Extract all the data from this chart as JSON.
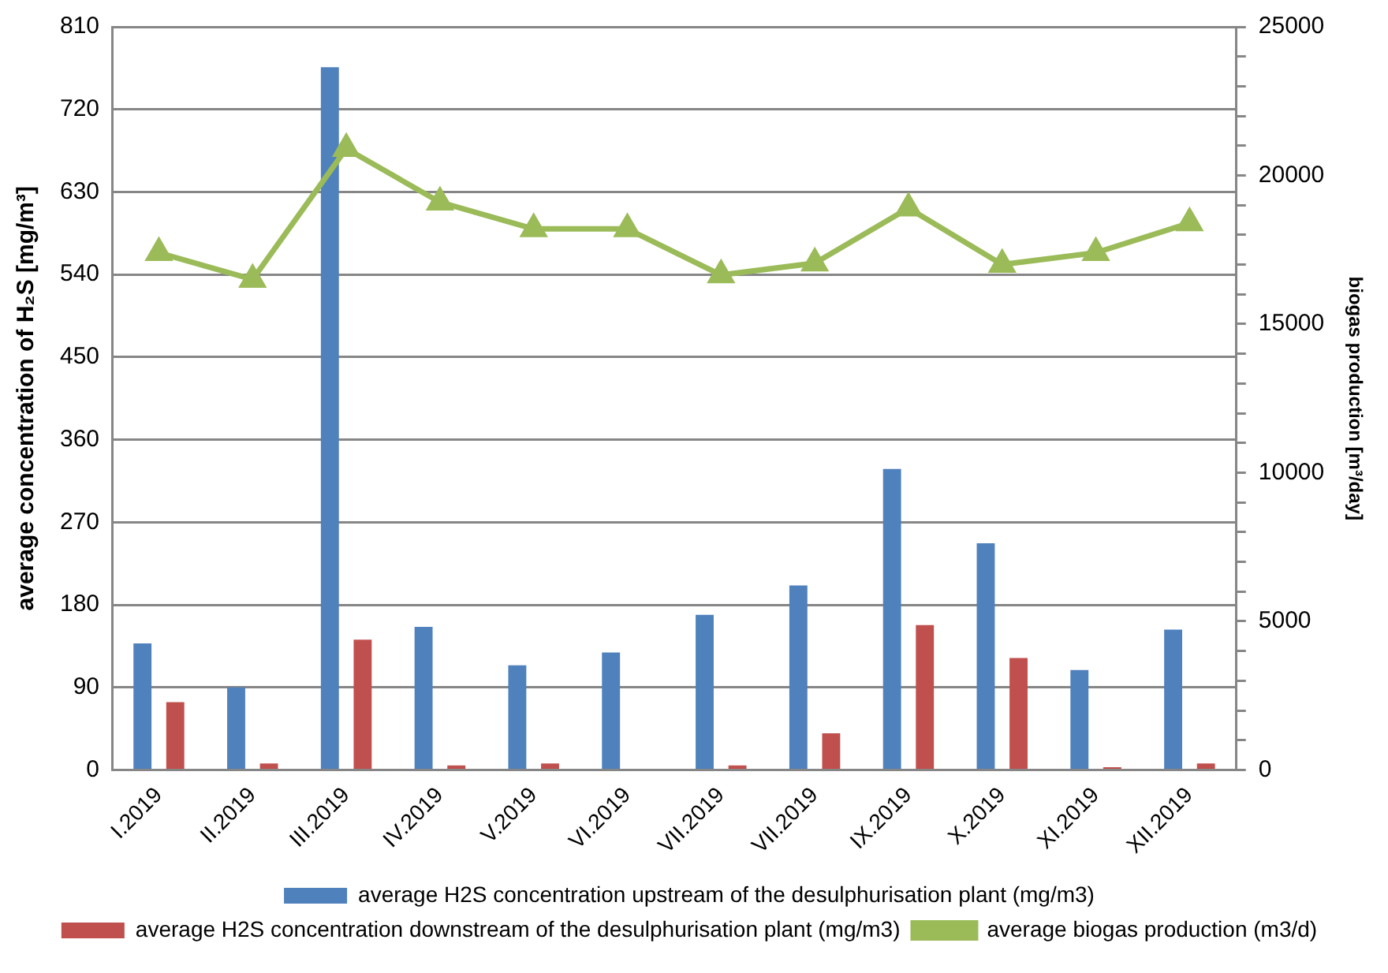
{
  "chart_data": {
    "type": "bar",
    "ylabel": "average concentration of H₂S [mg/m³]",
    "y2label": "biogas production [m³/day]",
    "categories": [
      "I.2019",
      "II.2019",
      "III.2019",
      "IV.2019",
      "V.2019",
      "VI.2019",
      "VII.2019",
      "VII.2019",
      "IX.2019",
      "X.2019",
      "XI.2019",
      "XII.2019"
    ],
    "series": [
      {
        "name": "average H2S concentration upstream of the desulphurisation plant (mg/m3)",
        "color": "#4f81bd",
        "values": [
          138,
          90,
          766,
          156,
          114,
          128,
          169,
          201,
          328,
          247,
          109,
          153
        ]
      },
      {
        "name": "average H2S concentration downstream of the desulphurisation plant (mg/m3)",
        "color": "#c0504d",
        "values": [
          74,
          7,
          142,
          5,
          7,
          0,
          5,
          40,
          158,
          122,
          3,
          7
        ]
      },
      {
        "name": "average biogas production (m3/d)",
        "type": "line",
        "axis": "y2",
        "color": "#9bbb59",
        "marker": "triangle",
        "values": [
          17400,
          16500,
          20900,
          19100,
          18200,
          18200,
          16650,
          17050,
          18900,
          17000,
          17400,
          18400
        ]
      }
    ],
    "ylim": [
      0,
      810
    ],
    "yticks": [
      0,
      90,
      180,
      270,
      360,
      450,
      540,
      630,
      720,
      810
    ],
    "y2lim": [
      0,
      25000
    ],
    "y2ticks": [
      0,
      {
        "value": 1000,
        "label": null
      },
      {
        "value": 2000,
        "label": null
      },
      {
        "value": 3000,
        "label": null
      },
      {
        "value": 4000,
        "label": null
      },
      5000,
      {
        "value": 6000,
        "label": null
      },
      {
        "value": 7000,
        "label": null
      },
      {
        "value": 8000,
        "label": null
      },
      {
        "value": 9000,
        "label": null
      },
      10000,
      {
        "value": 11000,
        "label": null
      },
      {
        "value": 12000,
        "label": null
      },
      {
        "value": 13000,
        "label": null
      },
      {
        "value": 14000,
        "label": null
      },
      15000,
      {
        "value": 16000,
        "label": null
      },
      {
        "value": 17000,
        "label": null
      },
      {
        "value": 18000,
        "label": null
      },
      {
        "value": 19000,
        "label": null
      },
      20000,
      {
        "value": 21000,
        "label": null
      },
      {
        "value": 22000,
        "label": null
      },
      {
        "value": 23000,
        "label": null
      },
      {
        "value": 24000,
        "label": null
      },
      25000
    ],
    "grid": "y",
    "legend": "bottom"
  }
}
